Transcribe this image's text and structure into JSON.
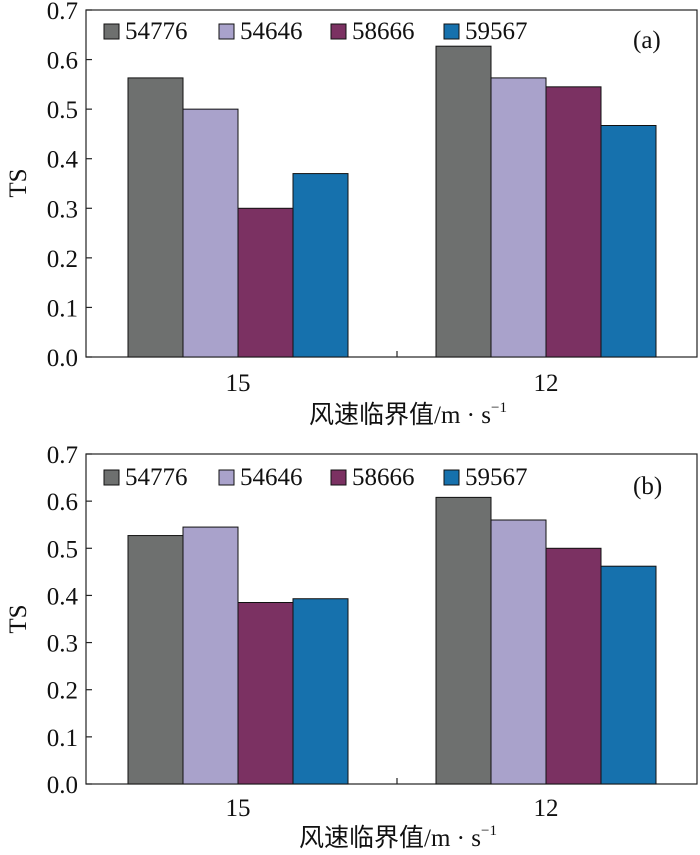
{
  "chart_data": [
    {
      "type": "bar",
      "panel_label": "(a)",
      "categories": [
        "15",
        "12"
      ],
      "series": [
        {
          "name": "54776",
          "values": [
            0.563,
            0.627
          ]
        },
        {
          "name": "54646",
          "values": [
            0.5,
            0.563
          ]
        },
        {
          "name": "58666",
          "values": [
            0.3,
            0.545
          ]
        },
        {
          "name": "59567",
          "values": [
            0.37,
            0.467
          ]
        }
      ],
      "ylabel": "TS",
      "xlabel_main": "风速临界值/m · s",
      "xlabel_sup": "−1",
      "ylim": [
        0,
        0.7
      ],
      "yticks": [
        "0.0",
        "0.1",
        "0.2",
        "0.3",
        "0.4",
        "0.5",
        "0.6",
        "0.7"
      ],
      "legend_position": "top"
    },
    {
      "type": "bar",
      "panel_label": "(b)",
      "categories": [
        "15",
        "12"
      ],
      "series": [
        {
          "name": "54776",
          "values": [
            0.527,
            0.608
          ]
        },
        {
          "name": "54646",
          "values": [
            0.545,
            0.56
          ]
        },
        {
          "name": "58666",
          "values": [
            0.385,
            0.5
          ]
        },
        {
          "name": "59567",
          "values": [
            0.393,
            0.462
          ]
        }
      ],
      "ylabel": "TS",
      "xlabel_main": "风速临界值/m · s",
      "xlabel_sup": "−1",
      "ylim": [
        0,
        0.7
      ],
      "yticks": [
        "0.0",
        "0.1",
        "0.2",
        "0.3",
        "0.4",
        "0.5",
        "0.6",
        "0.7"
      ],
      "legend_position": "top"
    }
  ],
  "colors": [
    "#6e706f",
    "#a9a2cb",
    "#7b3162",
    "#1671ad"
  ]
}
